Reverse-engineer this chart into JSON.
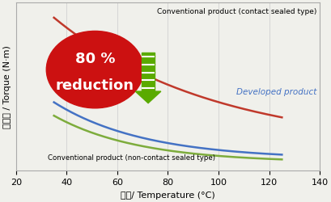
{
  "x_min": 20,
  "x_max": 140,
  "y_min": 0,
  "y_max": 1.0,
  "x_ticks": [
    20,
    40,
    60,
    80,
    100,
    120,
    140
  ],
  "xlabel": "温度/ Temperature (°C)",
  "ylabel": "トルク / Torque (N·m)",
  "bg_color": "#f0f0eb",
  "grid_color": "#cccccc",
  "line_contact_color": "#c0392b",
  "line_developed_color": "#4472c4",
  "line_noncontact_color": "#7dac3c",
  "contact_label": "Conventional product (contact sealed type)",
  "developed_label": "Developed product",
  "noncontact_label": "Conventional product (non-contact sealed type)",
  "ellipse_color": "#cc1111",
  "arrow_color": "#5aaa00",
  "reduction_text_line1": "80 %",
  "reduction_text_line2": "reduction",
  "figsize": [
    4.1,
    2.51
  ],
  "dpi": 100
}
